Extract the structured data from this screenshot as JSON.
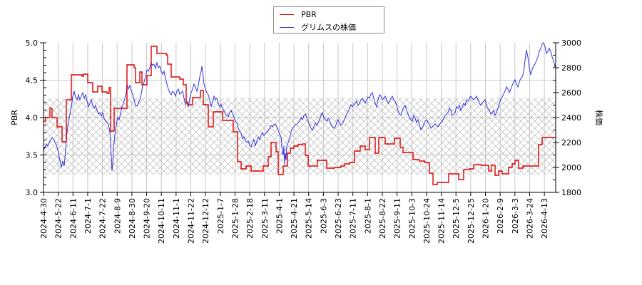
{
  "legend": {
    "items": [
      {
        "label": "PBR",
        "color": "#dd0000"
      },
      {
        "label": "グリムスの株価",
        "color": "#3333dd"
      }
    ]
  },
  "axes": {
    "left_title": "PBR",
    "right_title": "株価",
    "left_ticks": [
      "5.0",
      "4.5",
      "4.0",
      "3.5",
      "3.0"
    ],
    "right_ticks": [
      "3000",
      "2800",
      "2600",
      "2400",
      "2200",
      "2000",
      "1800"
    ],
    "x_ticks": [
      "2024-4-30",
      "2024-5-22",
      "2024-6-11",
      "2024-7-1",
      "2024-7-22",
      "2024-8-9",
      "2024-8-30",
      "2024-9-20",
      "2024-10-11",
      "2024-11-1",
      "2024-11-22",
      "2024-12-12",
      "2025-1-7",
      "2025-1-28",
      "2025-2-18",
      "2025-3-11",
      "2025-4-1",
      "2025-4-21",
      "2025-5-14",
      "2025-6-3",
      "2025-6-23",
      "2025-7-11",
      "2025-8-1",
      "2025-8-22",
      "2025-9-11",
      "2025-10-3",
      "2025-10-24",
      "2025-11-14",
      "2025-12-5",
      "2025-12-25",
      "2026-1-20",
      "2026-2-9",
      "2026-3-3",
      "2026-3-24",
      "2026-4-13"
    ]
  },
  "chart_data": {
    "type": "line",
    "title": "",
    "xlabel": "",
    "ylabel": "PBR",
    "ylabel_right": "株価",
    "ylim": [
      3.0,
      5.0
    ],
    "ylim_right": [
      1800,
      3000
    ],
    "grid": true,
    "legend_position": "top-center",
    "shaded_band": {
      "axis": "left",
      "from": 3.23,
      "to": 4.26,
      "style": "cross-hatch"
    },
    "categories": [
      "2024-4-30",
      "2024-5-22",
      "2024-6-11",
      "2024-7-1",
      "2024-7-22",
      "2024-8-9",
      "2024-8-30",
      "2024-9-20",
      "2024-10-11",
      "2024-11-1",
      "2024-11-22",
      "2024-12-12",
      "2025-1-7",
      "2025-1-28",
      "2025-2-18",
      "2025-3-11",
      "2025-4-1",
      "2025-4-21",
      "2025-5-14",
      "2025-6-3",
      "2025-6-23",
      "2025-7-11",
      "2025-8-1",
      "2025-8-22",
      "2025-9-11",
      "2025-10-3",
      "2025-10-24",
      "2025-11-14",
      "2025-12-5",
      "2025-12-25",
      "2026-1-20",
      "2026-2-9",
      "2026-3-3",
      "2026-3-24",
      "2026-4-13"
    ],
    "series": [
      {
        "name": "PBR",
        "axis": "left",
        "color": "#dd0000",
        "values": [
          3.95,
          3.88,
          4.57,
          4.58,
          4.34,
          3.82,
          4.12,
          4.47,
          4.95,
          4.84,
          4.17,
          4.36,
          4.08,
          3.96,
          3.31,
          3.29,
          3.54,
          3.24,
          3.59,
          3.35,
          3.34,
          3.35,
          3.55,
          3.65,
          3.65,
          3.45,
          3.4,
          3.1,
          3.27,
          3.38,
          3.34,
          3.26,
          3.38,
          3.37,
          3.73
        ]
      },
      {
        "name": "グリムスの株価",
        "axis": "right",
        "color": "#3333dd",
        "values": [
          2160,
          2060,
          2520,
          2600,
          2410,
          2000,
          2570,
          2730,
          2780,
          2620,
          2480,
          2560,
          2520,
          2390,
          2190,
          2250,
          2460,
          2250,
          2330,
          2440,
          2370,
          2360,
          2530,
          2590,
          2540,
          2380,
          2320,
          2310,
          2390,
          2530,
          2410,
          2420,
          2680,
          2740,
          2860
        ]
      }
    ]
  }
}
